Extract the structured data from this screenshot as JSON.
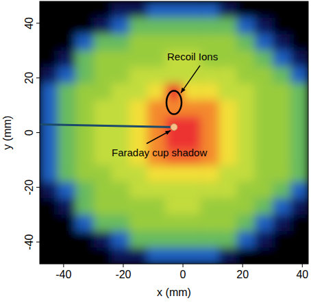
{
  "chart_data": {
    "type": "heatmap",
    "xlabel": "x (mm)",
    "ylabel": "y (mm)",
    "xlim": [
      -48,
      42
    ],
    "ylim": [
      -48,
      48
    ],
    "xticks": [
      -40,
      -20,
      0,
      20,
      40
    ],
    "yticks": [
      -40,
      -20,
      0,
      20,
      40
    ],
    "zlim": [
      0,
      100
    ],
    "cell_x": [
      -45,
      -39,
      -33,
      -27,
      -21,
      -15,
      -9,
      -3,
      3,
      9,
      15,
      21,
      27,
      33,
      39
    ],
    "cell_y": [
      45,
      39,
      33,
      27,
      21,
      15,
      9,
      3,
      -3,
      -9,
      -15,
      -21,
      -27,
      -33,
      -39,
      -45
    ],
    "cells": [
      [
        0,
        0,
        0,
        0,
        5,
        5,
        15,
        15,
        15,
        15,
        5,
        0,
        0,
        0,
        0
      ],
      [
        0,
        0,
        0,
        5,
        15,
        35,
        35,
        35,
        35,
        35,
        35,
        15,
        5,
        0,
        0
      ],
      [
        0,
        0,
        15,
        35,
        35,
        44,
        44,
        44,
        44,
        44,
        44,
        35,
        15,
        5,
        0
      ],
      [
        0,
        5,
        35,
        44,
        44,
        44,
        44,
        52,
        52,
        44,
        44,
        44,
        35,
        15,
        5
      ],
      [
        5,
        15,
        35,
        44,
        44,
        52,
        52,
        52,
        52,
        52,
        52,
        44,
        44,
        35,
        15
      ],
      [
        15,
        35,
        44,
        44,
        52,
        52,
        62,
        88,
        62,
        62,
        52,
        52,
        44,
        44,
        35
      ],
      [
        15,
        35,
        44,
        52,
        52,
        62,
        75,
        75,
        75,
        75,
        62,
        52,
        44,
        44,
        35
      ],
      [
        15,
        35,
        44,
        52,
        52,
        62,
        75,
        90,
        90,
        75,
        62,
        52,
        44,
        44,
        35
      ],
      [
        15,
        35,
        44,
        52,
        52,
        62,
        75,
        90,
        90,
        75,
        62,
        52,
        44,
        44,
        35
      ],
      [
        15,
        35,
        44,
        52,
        52,
        62,
        75,
        80,
        80,
        75,
        62,
        52,
        44,
        44,
        35
      ],
      [
        15,
        35,
        44,
        44,
        52,
        52,
        62,
        62,
        62,
        62,
        52,
        52,
        44,
        44,
        35
      ],
      [
        5,
        15,
        35,
        44,
        44,
        52,
        52,
        52,
        52,
        52,
        52,
        44,
        44,
        35,
        15
      ],
      [
        0,
        5,
        35,
        44,
        44,
        44,
        44,
        52,
        52,
        44,
        44,
        44,
        35,
        15,
        5
      ],
      [
        0,
        0,
        15,
        35,
        35,
        44,
        44,
        44,
        44,
        44,
        44,
        35,
        15,
        5,
        0
      ],
      [
        0,
        0,
        0,
        5,
        15,
        35,
        35,
        35,
        35,
        35,
        35,
        15,
        5,
        0,
        0
      ],
      [
        0,
        0,
        0,
        0,
        5,
        5,
        15,
        15,
        15,
        15,
        5,
        0,
        0,
        0,
        0
      ]
    ],
    "shadow": {
      "x": [
        -48,
        -3
      ],
      "y": [
        3,
        2
      ]
    },
    "annotations": [
      {
        "text": "Recoil Ions",
        "x": -3,
        "y": 11
      },
      {
        "text": "Faraday cup shadow",
        "x": -3,
        "y": 2
      }
    ]
  }
}
